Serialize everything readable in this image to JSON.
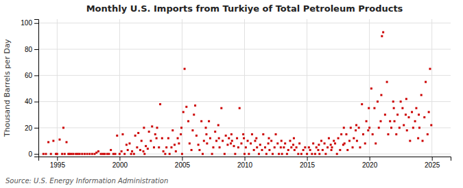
{
  "chart_data": {
    "type": "scatter",
    "title": "Monthly U.S. Imports from Turkiye of Total Petroleum Products",
    "ylabel": "Thousand Barrels per Day",
    "source": "Source: U.S. Energy Information Administration",
    "color": "#cc0000",
    "marker": "square",
    "grid": true,
    "xlim": [
      1993.5,
      2026.5
    ],
    "ylim": [
      -2,
      103
    ],
    "xticks": [
      1995,
      2000,
      2005,
      2010,
      2015,
      2020,
      2025
    ],
    "yticks": [
      0,
      20,
      40,
      60,
      80,
      100
    ],
    "x": [
      1993.9,
      1994.1,
      1994.3,
      1994.5,
      1994.7,
      1994.9,
      1995.0,
      1995.2,
      1995.4,
      1995.5,
      1995.6,
      1995.75,
      1995.9,
      1996.0,
      1996.15,
      1996.3,
      1996.5,
      1996.65,
      1996.8,
      1997.0,
      1997.2,
      1997.4,
      1997.6,
      1997.8,
      1998.0,
      1998.15,
      1998.3,
      1998.5,
      1998.65,
      1998.8,
      1999.0,
      1999.15,
      1999.3,
      1999.5,
      1999.65,
      1999.8,
      2000.0,
      2000.15,
      2000.25,
      2000.4,
      2000.55,
      2000.65,
      2000.8,
      2000.92,
      2001.0,
      2001.15,
      2001.25,
      2001.4,
      2001.5,
      2001.65,
      2001.75,
      2001.9,
      2001.95,
      2002.0,
      2002.1,
      2002.25,
      2002.35,
      2002.5,
      2002.6,
      2002.75,
      2002.85,
      2002.95,
      2003.0,
      2003.15,
      2003.25,
      2003.4,
      2003.5,
      2003.65,
      2003.75,
      2003.9,
      2004.0,
      2004.15,
      2004.25,
      2004.4,
      2004.5,
      2004.65,
      2004.75,
      2004.9,
      2004.95,
      2005.0,
      2005.1,
      2005.2,
      2005.35,
      2005.5,
      2005.6,
      2005.75,
      2005.85,
      2005.95,
      2006.05,
      2006.15,
      2006.3,
      2006.4,
      2006.55,
      2006.65,
      2006.75,
      2006.9,
      2006.95,
      2007.0,
      2007.15,
      2007.25,
      2007.4,
      2007.5,
      2007.65,
      2007.75,
      2007.9,
      2007.95,
      2008.0,
      2008.15,
      2008.25,
      2008.4,
      2008.5,
      2008.65,
      2008.75,
      2008.9,
      2008.95,
      2009.0,
      2009.15,
      2009.25,
      2009.4,
      2009.5,
      2009.6,
      2009.75,
      2009.9,
      2009.95,
      2010.0,
      2010.1,
      2010.25,
      2010.35,
      2010.5,
      2010.6,
      2010.75,
      2010.85,
      2010.95,
      2011.0,
      2011.15,
      2011.25,
      2011.4,
      2011.5,
      2011.65,
      2011.75,
      2011.9,
      2011.95,
      2012.0,
      2012.15,
      2012.25,
      2012.4,
      2012.5,
      2012.65,
      2012.75,
      2012.9,
      2012.95,
      2013.0,
      2013.15,
      2013.25,
      2013.4,
      2013.5,
      2013.65,
      2013.75,
      2013.9,
      2013.95,
      2014.0,
      2014.15,
      2014.3,
      2014.4,
      2014.55,
      2014.7,
      2014.85,
      2015.0,
      2015.15,
      2015.25,
      2015.4,
      2015.5,
      2015.65,
      2015.75,
      2015.9,
      2015.95,
      2016.0,
      2016.15,
      2016.25,
      2016.4,
      2016.5,
      2016.65,
      2016.75,
      2016.9,
      2016.95,
      2017.0,
      2017.15,
      2017.25,
      2017.4,
      2017.5,
      2017.65,
      2017.75,
      2017.9,
      2017.95,
      2018.0,
      2018.15,
      2018.25,
      2018.4,
      2018.5,
      2018.65,
      2018.75,
      2018.9,
      2018.95,
      2019.0,
      2019.15,
      2019.25,
      2019.4,
      2019.5,
      2019.65,
      2019.75,
      2019.9,
      2019.95,
      2020.0,
      2020.15,
      2020.25,
      2020.4,
      2020.5,
      2020.65,
      2020.75,
      2020.9,
      2020.95,
      2021.0,
      2021.1,
      2021.25,
      2021.4,
      2021.5,
      2021.65,
      2021.75,
      2021.9,
      2021.95,
      2022.0,
      2022.15,
      2022.25,
      2022.4,
      2022.5,
      2022.65,
      2022.75,
      2022.9,
      2022.95,
      2023.0,
      2023.15,
      2023.25,
      2023.4,
      2023.5,
      2023.65,
      2023.75,
      2023.9,
      2023.95,
      2024.0,
      2024.15,
      2024.25,
      2024.4,
      2024.5,
      2024.65,
      2024.75,
      2024.85,
      2024.95
    ],
    "values": [
      0,
      0,
      9,
      0,
      10,
      0,
      0,
      11,
      0,
      20,
      0,
      9,
      0,
      0,
      0,
      0,
      0,
      0,
      0,
      0,
      0,
      0,
      0,
      0,
      0,
      1,
      2,
      0,
      0,
      0,
      0,
      0,
      3,
      0,
      0,
      14,
      0,
      2,
      15,
      0,
      7,
      3,
      8,
      0,
      2,
      0,
      14,
      5,
      16,
      3,
      10,
      2,
      20,
      0,
      6,
      4,
      17,
      10,
      21,
      5,
      15,
      12,
      20,
      5,
      38,
      12,
      2,
      0,
      5,
      12,
      0,
      5,
      18,
      7,
      2,
      12,
      8,
      15,
      20,
      0,
      32,
      65,
      36,
      25,
      8,
      3,
      18,
      30,
      37,
      14,
      7,
      3,
      25,
      0,
      10,
      20,
      15,
      8,
      25,
      12,
      0,
      5,
      17,
      10,
      22,
      12,
      5,
      35,
      10,
      0,
      14,
      7,
      12,
      8,
      15,
      10,
      6,
      0,
      12,
      5,
      35,
      8,
      15,
      12,
      0,
      5,
      10,
      0,
      8,
      15,
      3,
      10,
      12,
      5,
      0,
      7,
      3,
      15,
      5,
      0,
      8,
      12,
      3,
      10,
      0,
      5,
      15,
      8,
      0,
      5,
      10,
      0,
      5,
      8,
      0,
      3,
      10,
      5,
      7,
      12,
      3,
      5,
      0,
      8,
      0,
      3,
      5,
      0,
      5,
      3,
      0,
      8,
      0,
      5,
      3,
      7,
      0,
      10,
      3,
      8,
      0,
      5,
      12,
      7,
      3,
      5,
      10,
      8,
      0,
      12,
      3,
      15,
      7,
      20,
      8,
      15,
      3,
      10,
      20,
      5,
      12,
      18,
      22,
      10,
      20,
      5,
      38,
      15,
      8,
      25,
      18,
      35,
      20,
      50,
      15,
      35,
      8,
      40,
      20,
      25,
      45,
      90,
      93,
      30,
      55,
      15,
      25,
      20,
      40,
      35,
      25,
      15,
      30,
      20,
      40,
      35,
      22,
      30,
      42,
      18,
      28,
      10,
      32,
      20,
      25,
      35,
      12,
      30,
      20,
      45,
      10,
      28,
      55,
      15,
      32,
      65,
      22
    ]
  }
}
